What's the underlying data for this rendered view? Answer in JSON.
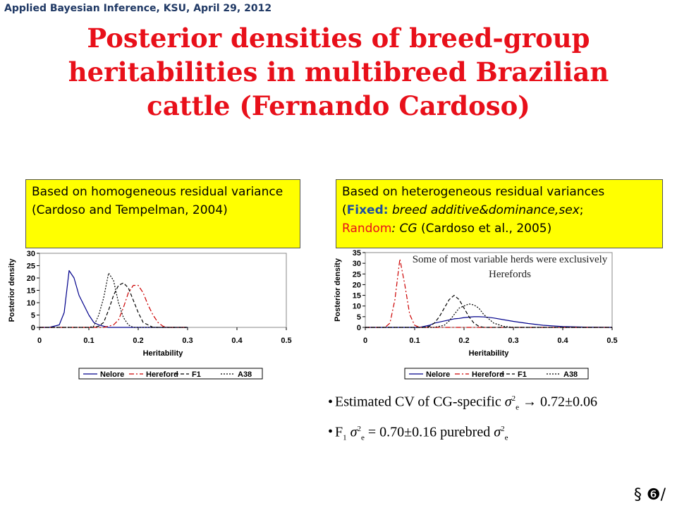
{
  "header": {
    "note": "Applied Bayesian Inference, KSU, April 29, 2012"
  },
  "slide": {
    "title": "Posterior densities of breed-group heritabilities in multibreed Brazilian cattle (Fernando Cardoso)"
  },
  "left_box": {
    "text": "Based on homogeneous residual variance (Cardoso and Tempelman, 2004)"
  },
  "right_box": {
    "line1": "Based on heterogeneous residual variances",
    "open_paren": "(",
    "fixed_label": "Fixed:",
    "fixed_text": " breed additive&dominance,sex",
    "semicolon": ";",
    "random_label": "Random",
    "random_rest": ": CG",
    "random_cite": "  (Cardoso et al., 2005)"
  },
  "annotation": {
    "text": "Some of most variable herds were exclusively Herefords"
  },
  "bullets": {
    "b1_prefix": "Estimated CV of CG-specific ",
    "b1_sigma": "σ",
    "b1_sup": "2",
    "b1_sub": "e",
    "b1_suffix": " → 0.72±0.06",
    "b2_f": "F",
    "b2_fsub": "1",
    "b2_sigma": "σ",
    "b2_sup": "2",
    "b2_sub": "e",
    "b2_mid": " = 0.70±0.16 purebred ",
    "b2_sigma2": "σ",
    "b2_sup2": "2",
    "b2_sub2": "e"
  },
  "corner": {
    "text": "§ ❻/"
  },
  "colors": {
    "nelore": "#00008b",
    "hereford": "#cc0000",
    "f1": "#000000",
    "a38": "#000000",
    "title": "#e8101a",
    "box": "#ffff00"
  },
  "chart_data": [
    {
      "type": "line",
      "xlabel": "Heritability",
      "ylabel": "Posterior density",
      "xlim": [
        0,
        0.5
      ],
      "ylim": [
        0,
        30
      ],
      "xticks": [
        "0",
        "0.1",
        "0.2",
        "0.3",
        "0.4",
        "0.5"
      ],
      "yticks": [
        "0",
        "5",
        "10",
        "15",
        "20",
        "25",
        "30"
      ],
      "grid": false,
      "legend_position": "bottom",
      "x": [
        0.0,
        0.02,
        0.04,
        0.05,
        0.06,
        0.07,
        0.08,
        0.09,
        0.1,
        0.11,
        0.12,
        0.13,
        0.14,
        0.15,
        0.16,
        0.17,
        0.18,
        0.19,
        0.2,
        0.21,
        0.22,
        0.23,
        0.24,
        0.25,
        0.26,
        0.28,
        0.3
      ],
      "series": [
        {
          "name": "Nelore",
          "style": "solid",
          "values": [
            0,
            0,
            1,
            6,
            23,
            20,
            13,
            9,
            5,
            2,
            1,
            0.5,
            0,
            0,
            0,
            0,
            0,
            0,
            0,
            0,
            0,
            0,
            0,
            0,
            0,
            0,
            0
          ]
        },
        {
          "name": "Hereford",
          "style": "dashdot",
          "values": [
            0,
            0,
            0,
            0,
            0,
            0,
            0,
            0,
            0,
            0,
            0,
            0,
            0.5,
            1,
            3,
            8,
            14,
            17,
            17,
            14,
            9,
            5,
            2,
            0.5,
            0,
            0,
            0
          ]
        },
        {
          "name": "F1",
          "style": "dashed",
          "values": [
            0,
            0,
            0,
            0,
            0,
            0,
            0,
            0,
            0,
            0,
            0.5,
            2,
            7,
            13,
            17,
            18,
            16,
            11,
            6,
            2,
            1,
            0,
            0,
            0,
            0,
            0,
            0
          ]
        },
        {
          "name": "A38",
          "style": "dotted",
          "values": [
            0,
            0,
            0,
            0,
            0,
            0,
            0,
            0,
            0,
            0.5,
            5,
            12,
            22,
            19,
            10,
            4,
            1,
            0,
            0,
            0,
            0,
            0,
            0,
            0,
            0,
            0,
            0
          ]
        }
      ]
    },
    {
      "type": "line",
      "xlabel": "Heritability",
      "ylabel": "Posterior density",
      "xlim": [
        0,
        0.5
      ],
      "ylim": [
        0,
        35
      ],
      "xticks": [
        "0",
        "0.1",
        "0.2",
        "0.3",
        "0.4",
        "0.5"
      ],
      "yticks": [
        "0",
        "5",
        "10",
        "15",
        "20",
        "25",
        "30",
        "35"
      ],
      "grid": false,
      "legend_position": "bottom",
      "x": [
        0.0,
        0.03,
        0.04,
        0.05,
        0.06,
        0.07,
        0.08,
        0.09,
        0.1,
        0.11,
        0.12,
        0.13,
        0.14,
        0.15,
        0.16,
        0.17,
        0.18,
        0.19,
        0.2,
        0.21,
        0.22,
        0.23,
        0.24,
        0.25,
        0.26,
        0.28,
        0.3,
        0.33,
        0.36,
        0.4,
        0.45,
        0.5
      ],
      "series": [
        {
          "name": "Nelore",
          "style": "solid",
          "values": [
            0,
            0,
            0,
            0,
            0,
            0,
            0,
            0,
            0,
            0,
            0.5,
            1,
            2,
            2.5,
            3,
            3.5,
            4,
            4.2,
            4.6,
            4.8,
            5,
            5,
            4.9,
            4.7,
            4.4,
            3.6,
            2.8,
            1.8,
            1,
            0.4,
            0.1,
            0
          ]
        },
        {
          "name": "Hereford",
          "style": "dashdot",
          "values": [
            0,
            0,
            0,
            2,
            13,
            32,
            20,
            6,
            1,
            0,
            0,
            0,
            0,
            0,
            0,
            0,
            0,
            0,
            0,
            0,
            0,
            0,
            0,
            0,
            0,
            0,
            0,
            0,
            0,
            0,
            0,
            0
          ]
        },
        {
          "name": "F1",
          "style": "dashed",
          "values": [
            0,
            0,
            0,
            0,
            0,
            0,
            0,
            0,
            0,
            0,
            0,
            0.5,
            2,
            5,
            9,
            13,
            15,
            13,
            9,
            5,
            2,
            0.5,
            0,
            0,
            0,
            0,
            0,
            0,
            0,
            0,
            0,
            0
          ]
        },
        {
          "name": "A38",
          "style": "dotted",
          "values": [
            0,
            0,
            0,
            0,
            0,
            0,
            0,
            0,
            0,
            0,
            0,
            0,
            0,
            0.5,
            1,
            3,
            6,
            9,
            10,
            11,
            10.5,
            9,
            6,
            4,
            2,
            0.5,
            0,
            0,
            0,
            0,
            0,
            0
          ]
        }
      ]
    }
  ]
}
